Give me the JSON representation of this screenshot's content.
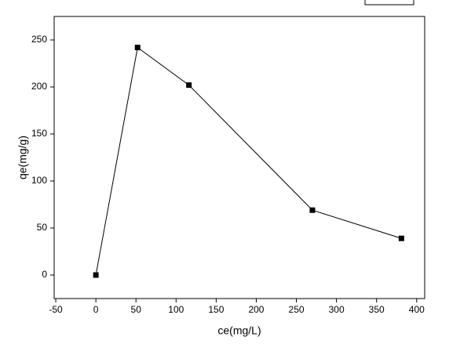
{
  "chart_data": {
    "type": "line",
    "x_label": "ce(mg/L)",
    "y_label": "qe(mg/g)",
    "x": [
      0,
      52,
      116,
      270,
      381
    ],
    "series": [
      {
        "color": "#000000",
        "values": [
          0,
          242,
          202,
          69,
          39
        ]
      }
    ],
    "xlim": [
      -52,
      410
    ],
    "xticks": [
      -50,
      0,
      50,
      100,
      150,
      200,
      250,
      300,
      350,
      400
    ],
    "ylim": [
      -25,
      275
    ],
    "yticks": [
      0,
      50,
      100,
      150,
      200,
      250
    ],
    "grid": false,
    "markers": "square"
  }
}
